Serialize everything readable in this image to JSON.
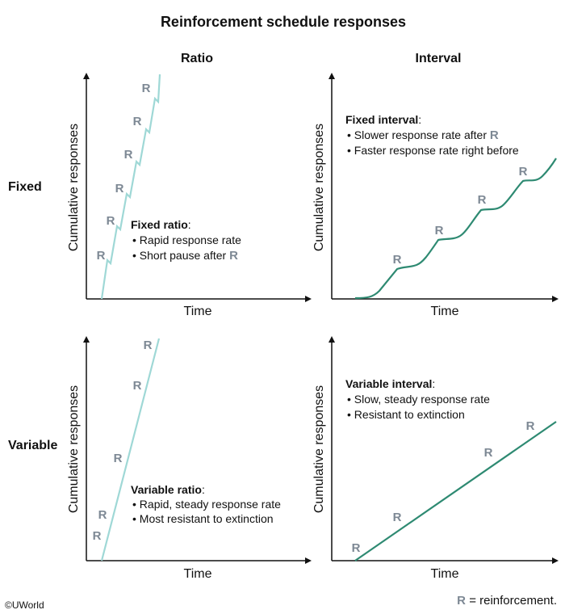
{
  "title": "Reinforcement schedule responses",
  "columns": [
    "Ratio",
    "Interval"
  ],
  "rows": [
    "Fixed",
    "Variable"
  ],
  "axis": {
    "x_label": "Time",
    "y_label": "Cumulative responses"
  },
  "reinforcement_marker": "R",
  "panels": {
    "fixed_ratio": {
      "heading": "Fixed ratio",
      "bullets": [
        "Rapid response rate",
        "Short pause after"
      ],
      "bullet_marker_suffix_index": 1
    },
    "fixed_interval": {
      "heading": "Fixed interval",
      "bullets": [
        "Slower response rate after",
        "Faster response rate right before"
      ],
      "bullet_marker_suffix_index": 0
    },
    "variable_ratio": {
      "heading": "Variable ratio",
      "bullets": [
        "Rapid, steady response rate",
        "Most resistant to extinction"
      ]
    },
    "variable_interval": {
      "heading": "Variable interval",
      "bullets": [
        "Slow, steady response rate",
        "Resistant to extinction"
      ]
    }
  },
  "legend": {
    "marker": "R",
    "text": "= reinforcement."
  },
  "credit": "©UWorld",
  "colors": {
    "ratio_line": "#9fd8d6",
    "interval_line": "#2e8a72",
    "marker": "#7d8894",
    "axis": "#111111"
  }
}
